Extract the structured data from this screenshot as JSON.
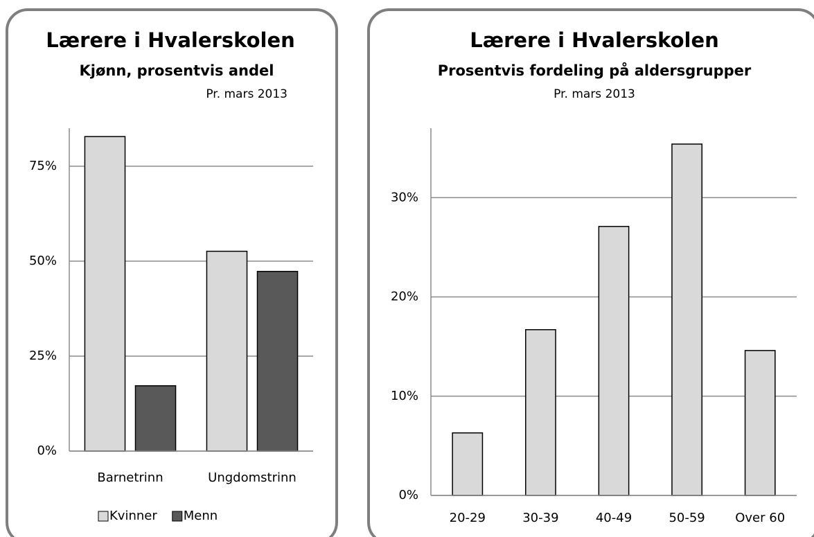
{
  "chart_data": [
    {
      "type": "bar",
      "title": "Lærere i Hvalerskolen",
      "subtitle": "Kjønn, prosentvis andel",
      "note": "Pr. mars 2013",
      "categories": [
        "Barnetrinn",
        "Ungdomstrinn"
      ],
      "series": [
        {
          "name": "Kvinner",
          "color": "#d9d9d9",
          "values": [
            82.8,
            52.6
          ]
        },
        {
          "name": "Menn",
          "color": "#595959",
          "values": [
            17.2,
            47.3
          ]
        }
      ],
      "ylim": [
        0,
        85
      ],
      "yticks": [
        {
          "value": 0,
          "label": "0%"
        },
        {
          "value": 25,
          "label": "25%"
        },
        {
          "value": 50,
          "label": "50%"
        },
        {
          "value": 75,
          "label": "75%"
        }
      ],
      "grid": true,
      "legend": "bottom"
    },
    {
      "type": "bar",
      "title": "Lærere i Hvalerskolen",
      "subtitle": "Prosentvis fordeling på aldersgrupper",
      "note": "Pr. mars 2013",
      "categories": [
        "20-29",
        "30-39",
        "40-49",
        "50-59",
        "Over 60"
      ],
      "values": [
        6.3,
        16.7,
        27.1,
        35.4,
        14.6
      ],
      "color": "#d9d9d9",
      "ylim": [
        0,
        37
      ],
      "yticks": [
        {
          "value": 0,
          "label": "0%"
        },
        {
          "value": 10,
          "label": "10%"
        },
        {
          "value": 20,
          "label": "20%"
        },
        {
          "value": 30,
          "label": "30%"
        }
      ],
      "grid": true
    }
  ]
}
